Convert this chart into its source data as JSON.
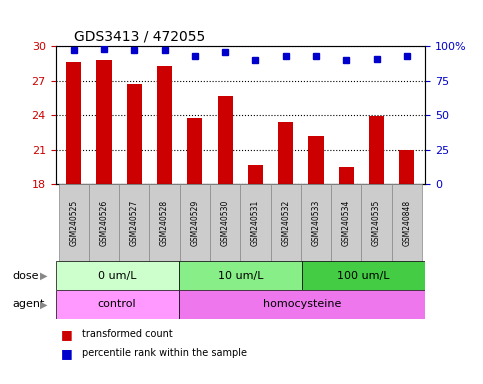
{
  "title": "GDS3413 / 472055",
  "samples": [
    "GSM240525",
    "GSM240526",
    "GSM240527",
    "GSM240528",
    "GSM240529",
    "GSM240530",
    "GSM240531",
    "GSM240532",
    "GSM240533",
    "GSM240534",
    "GSM240535",
    "GSM240848"
  ],
  "transformed_count": [
    28.6,
    28.8,
    26.7,
    28.3,
    23.8,
    25.7,
    19.7,
    23.4,
    22.2,
    19.5,
    23.9,
    21.0
  ],
  "percentile_rank": [
    97,
    98,
    97,
    97,
    93,
    96,
    90,
    93,
    93,
    90,
    91,
    93
  ],
  "bar_color": "#cc0000",
  "dot_color": "#0000cc",
  "ylim_left": [
    18,
    30
  ],
  "ylim_right": [
    0,
    100
  ],
  "yticks_left": [
    18,
    21,
    24,
    27,
    30
  ],
  "yticks_right": [
    0,
    25,
    50,
    75,
    100
  ],
  "ytick_labels_right": [
    "0",
    "25",
    "50",
    "75",
    "100%"
  ],
  "dose_groups": [
    {
      "label": "0 um/L",
      "start": 0,
      "end": 4,
      "color": "#ccffcc"
    },
    {
      "label": "10 um/L",
      "start": 4,
      "end": 8,
      "color": "#88ee88"
    },
    {
      "label": "100 um/L",
      "start": 8,
      "end": 12,
      "color": "#44cc44"
    }
  ],
  "agent_groups": [
    {
      "label": "control",
      "start": 0,
      "end": 4,
      "color": "#ff99ff"
    },
    {
      "label": "homocysteine",
      "start": 4,
      "end": 12,
      "color": "#ee77ee"
    }
  ],
  "dose_label": "dose",
  "agent_label": "agent",
  "legend_bar_label": "transformed count",
  "legend_dot_label": "percentile rank within the sample",
  "ylabel_left_color": "#cc0000",
  "ylabel_right_color": "#0000cc",
  "label_box_color": "#cccccc",
  "label_box_edge": "#888888"
}
